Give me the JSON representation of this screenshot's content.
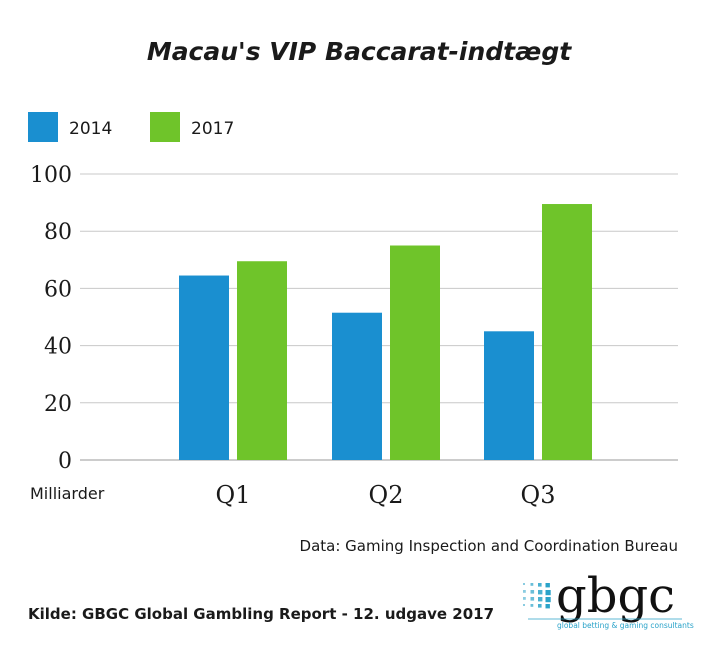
{
  "chart_data": {
    "type": "bar",
    "title": "Macau's VIP Baccarat-indtægt",
    "ylabel": "Milliarder",
    "categories": [
      "Q1",
      "Q2",
      "Q3"
    ],
    "series": [
      {
        "name": "2014",
        "color": "#1a8fd0",
        "values": [
          64.5,
          51.5,
          45
        ]
      },
      {
        "name": "2017",
        "color": "#6fc42a",
        "values": [
          69.5,
          75,
          89.5
        ]
      }
    ],
    "ylim": [
      0,
      100
    ],
    "yticks": [
      0,
      20,
      40,
      60,
      80,
      100
    ],
    "grid": true,
    "legend": "top-left"
  },
  "footer": {
    "data_note": "Data: Gaming Inspection and Coordination Bureau",
    "source": "Kilde: GBGC Global Gambling Report - 12. udgave 2017"
  },
  "logo": {
    "text": "gbgc",
    "tagline": "global betting & gaming consultants",
    "dot_color": "#2aa3c9"
  }
}
